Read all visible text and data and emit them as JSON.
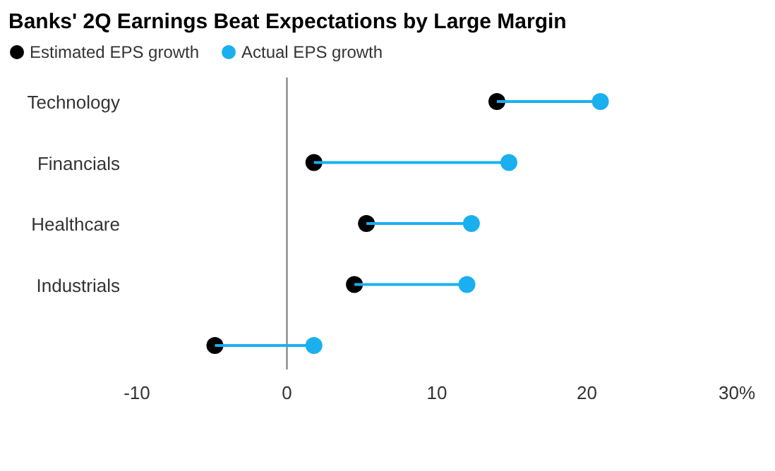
{
  "chart_data": {
    "type": "scatter",
    "title": "Banks' 2Q Earnings Beat Expectations by Large Margin",
    "orientation": "horizontal",
    "categories": [
      "Technology",
      "Financials",
      "Healthcare",
      "Industrials",
      null
    ],
    "series": [
      {
        "name": "Estimated EPS growth",
        "color": "#000000",
        "values": [
          14,
          1.8,
          5.3,
          4.5,
          -4.8
        ]
      },
      {
        "name": "Actual EPS growth",
        "color": "#1ab0f0",
        "values": [
          20.9,
          14.8,
          12.3,
          12,
          1.8
        ]
      }
    ],
    "xlim": [
      -10,
      30
    ],
    "xticks": [
      -10,
      0,
      10,
      20,
      {
        "value": 30,
        "label": "30%"
      }
    ],
    "ref_lines": [
      {
        "axis": "x",
        "value": 0,
        "color": "#888888"
      }
    ],
    "grid": false,
    "legend": "top left",
    "marker": "circle"
  }
}
